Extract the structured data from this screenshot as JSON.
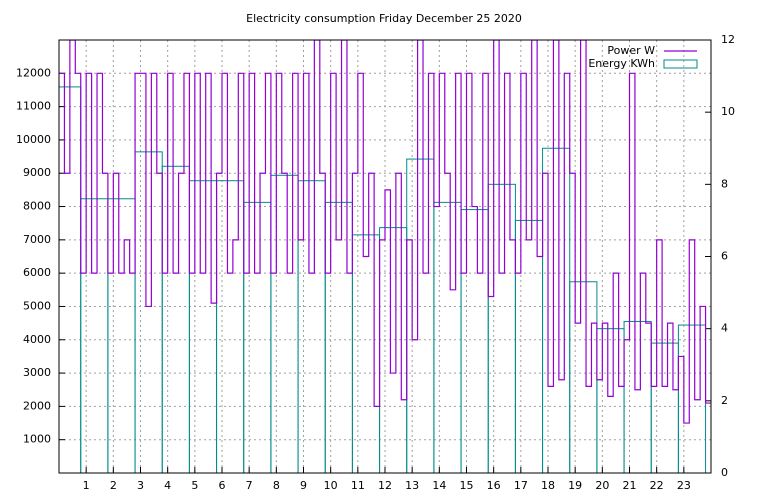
{
  "chart_data": {
    "type": "line",
    "title": "Electricity consumption Friday December 25 2020",
    "xlim": [
      0,
      24
    ],
    "xticks": [
      1,
      2,
      3,
      4,
      5,
      6,
      7,
      8,
      9,
      10,
      11,
      12,
      13,
      14,
      15,
      16,
      17,
      18,
      19,
      20,
      21,
      22,
      23
    ],
    "ylim": [
      0,
      13000
    ],
    "yticks": [
      1000,
      2000,
      3000,
      4000,
      5000,
      6000,
      7000,
      8000,
      9000,
      10000,
      11000,
      12000
    ],
    "y2lim": [
      0,
      12
    ],
    "y2ticks": [
      0,
      2,
      4,
      6,
      8,
      10,
      12
    ],
    "grid": true,
    "legend": "top-right",
    "series": [
      {
        "name": "Power W",
        "color": "#9400d3",
        "style": "steps",
        "x": [
          0,
          0.2,
          0.4,
          0.6,
          0.8,
          1,
          1.2,
          1.4,
          1.6,
          1.8,
          2,
          2.2,
          2.4,
          2.6,
          2.8,
          3,
          3.2,
          3.4,
          3.6,
          3.8,
          4,
          4.2,
          4.4,
          4.6,
          4.8,
          5,
          5.2,
          5.4,
          5.6,
          5.8,
          6,
          6.2,
          6.4,
          6.6,
          6.8,
          7,
          7.2,
          7.4,
          7.6,
          7.8,
          8,
          8.2,
          8.4,
          8.6,
          8.8,
          9,
          9.2,
          9.4,
          9.6,
          9.8,
          10,
          10.2,
          10.4,
          10.6,
          10.8,
          11,
          11.2,
          11.4,
          11.6,
          11.8,
          12,
          12.2,
          12.4,
          12.6,
          12.8,
          13,
          13.2,
          13.4,
          13.6,
          13.8,
          14,
          14.2,
          14.4,
          14.6,
          14.8,
          15,
          15.2,
          15.4,
          15.6,
          15.8,
          16,
          16.2,
          16.4,
          16.6,
          16.8,
          17,
          17.2,
          17.4,
          17.6,
          17.8,
          18,
          18.2,
          18.4,
          18.6,
          18.8,
          19,
          19.2,
          19.4,
          19.6,
          19.8,
          20,
          20.2,
          20.4,
          20.6,
          20.8,
          21,
          21.2,
          21.4,
          21.6,
          21.8,
          22,
          22.2,
          22.4,
          22.6,
          22.8,
          23,
          23.2,
          23.4,
          23.6,
          23.8
        ],
        "values": [
          12000,
          9000,
          13000,
          12000,
          6000,
          12000,
          6000,
          12000,
          9000,
          6000,
          9000,
          6000,
          7000,
          6000,
          12000,
          12000,
          5000,
          12000,
          9000,
          6000,
          12000,
          6000,
          9000,
          12000,
          6000,
          12000,
          6000,
          12000,
          5100,
          9000,
          12000,
          6000,
          7000,
          12000,
          6000,
          12000,
          6000,
          9000,
          12000,
          6000,
          12000,
          9000,
          6000,
          12000,
          7000,
          12000,
          6000,
          13000,
          9000,
          6000,
          12000,
          7000,
          13000,
          6000,
          9000,
          12000,
          6500,
          9000,
          2000,
          7000,
          8500,
          3000,
          9000,
          2200,
          7000,
          4000,
          13000,
          6000,
          12000,
          8000,
          12000,
          9000,
          5500,
          12000,
          6000,
          12000,
          8000,
          6000,
          12000,
          5300,
          13000,
          6000,
          12000,
          7000,
          6000,
          12000,
          7000,
          13000,
          6500,
          9000,
          2600,
          13000,
          2800,
          12000,
          9000,
          4500,
          13000,
          2600,
          4500,
          2800,
          4500,
          2300,
          6000,
          2600,
          4000,
          12000,
          2500,
          6000,
          4500,
          2600,
          7000,
          2600,
          4500,
          2500,
          3500,
          1500,
          7000,
          2200,
          5000,
          2100
        ]
      },
      {
        "name": "Energy KWh",
        "color": "#008b8b",
        "style": "boxes",
        "axis": "y2",
        "x": [
          0.3,
          1.3,
          2.3,
          3.3,
          4.3,
          5.3,
          6.3,
          7.3,
          8.3,
          9.3,
          10.3,
          11.3,
          12.3,
          13.3,
          14.3,
          15.3,
          16.3,
          17.3,
          18.3,
          19.3,
          20.3,
          21.3,
          22.3,
          23.3
        ],
        "values": [
          10.7,
          7.6,
          7.6,
          8.9,
          8.5,
          8.1,
          8.1,
          7.5,
          8.25,
          8.1,
          7.5,
          6.6,
          6.8,
          8.7,
          7.5,
          7.3,
          8.0,
          7.0,
          9.0,
          5.3,
          4.0,
          4.2,
          3.6,
          4.1
        ]
      }
    ]
  }
}
